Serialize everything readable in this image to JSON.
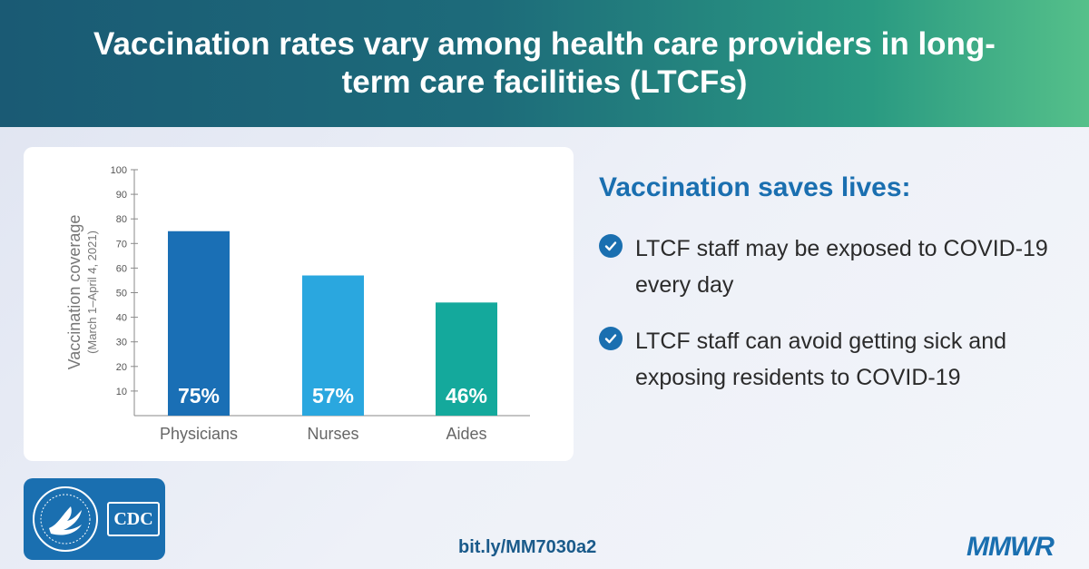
{
  "header": {
    "title": "Vaccination rates vary among health care providers in long-term care facilities (LTCFs)"
  },
  "chart_data": {
    "type": "bar",
    "categories": [
      "Physicians",
      "Nurses",
      "Aides"
    ],
    "values": [
      75,
      57,
      46
    ],
    "data_labels": [
      "75%",
      "57%",
      "46%"
    ],
    "colors": [
      "#1a6fb5",
      "#2aa7df",
      "#14a99c"
    ],
    "ylabel": "Vaccination coverage",
    "ylabel_sub": "(March 1–April 4, 2021)",
    "ylim": [
      0,
      100
    ],
    "yticks": [
      10,
      20,
      30,
      40,
      50,
      60,
      70,
      80,
      90,
      100
    ],
    "grid": false
  },
  "right": {
    "heading": "Vaccination saves lives:",
    "bullets": [
      "LTCF staff may be exposed to COVID-19 every day",
      "LTCF staff can avoid getting sick and exposing residents to COVID-19"
    ]
  },
  "footer": {
    "logo_text": "CDC",
    "link": "bit.ly/MM7030a2",
    "brand": "MMWR"
  },
  "colors": {
    "accent": "#1a6fb0"
  }
}
